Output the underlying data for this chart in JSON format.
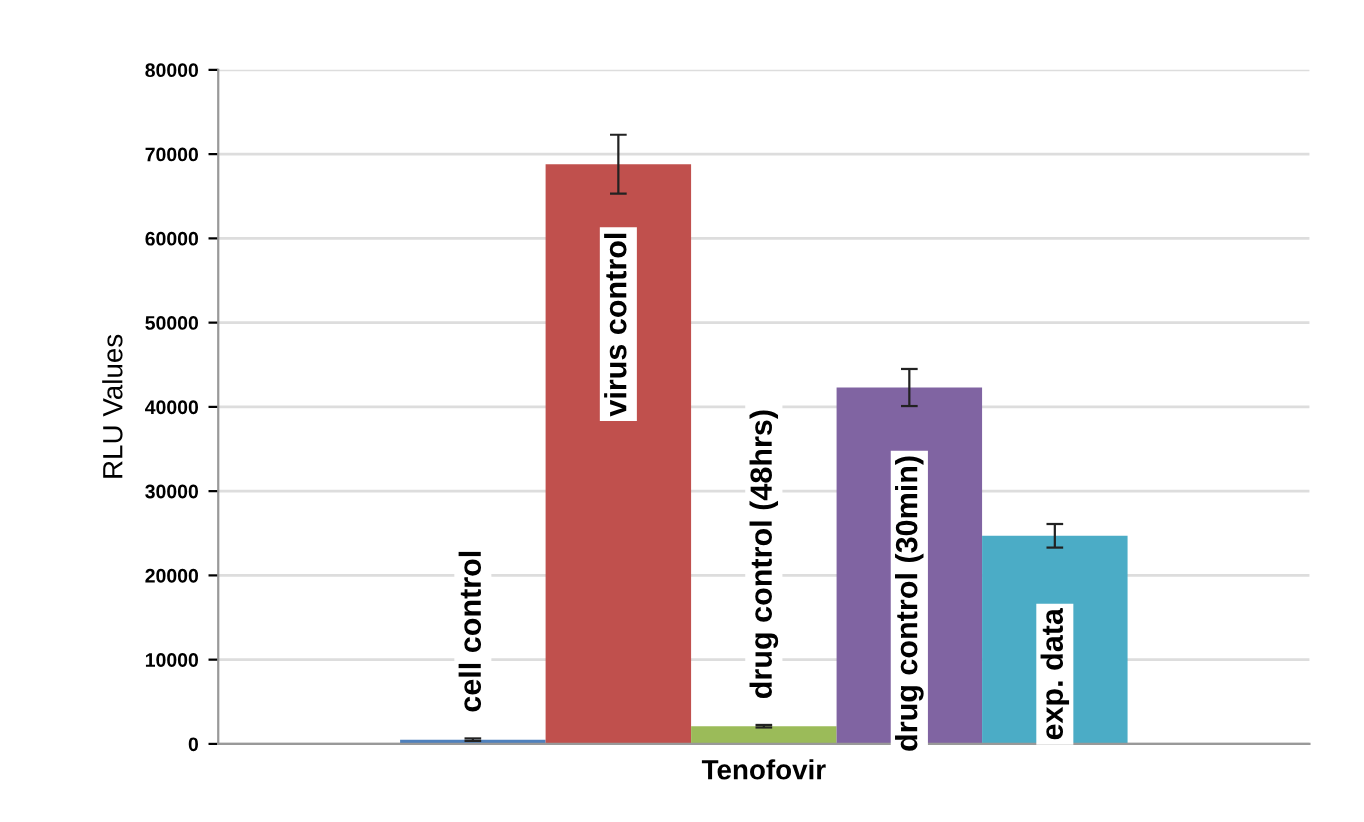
{
  "chart_data": {
    "type": "bar",
    "xlabel": "Tenofovir",
    "ylabel": "RLU Values",
    "categories": [
      null
    ],
    "series": [
      {
        "name": "cell control",
        "color": "#4f81bd",
        "values": [
          500
        ],
        "errors": [
          150
        ]
      },
      {
        "name": "virus control",
        "color": "#c0504d",
        "values": [
          68800
        ],
        "errors": [
          3500
        ]
      },
      {
        "name": "drug control (48hrs)",
        "color": "#9bbb59",
        "values": [
          2100
        ],
        "errors": [
          150
        ]
      },
      {
        "name": "drug control (30min)",
        "color": "#8064a2",
        "values": [
          42300
        ],
        "errors": [
          2200
        ]
      },
      {
        "name": "exp. data",
        "color": "#4bacc6",
        "values": [
          24700
        ],
        "errors": [
          1400
        ]
      }
    ],
    "ylim": [
      0,
      80000
    ],
    "yticks": [
      0,
      10000,
      20000,
      30000,
      40000,
      50000,
      60000,
      70000,
      80000
    ],
    "grid": "y",
    "legend": false
  }
}
